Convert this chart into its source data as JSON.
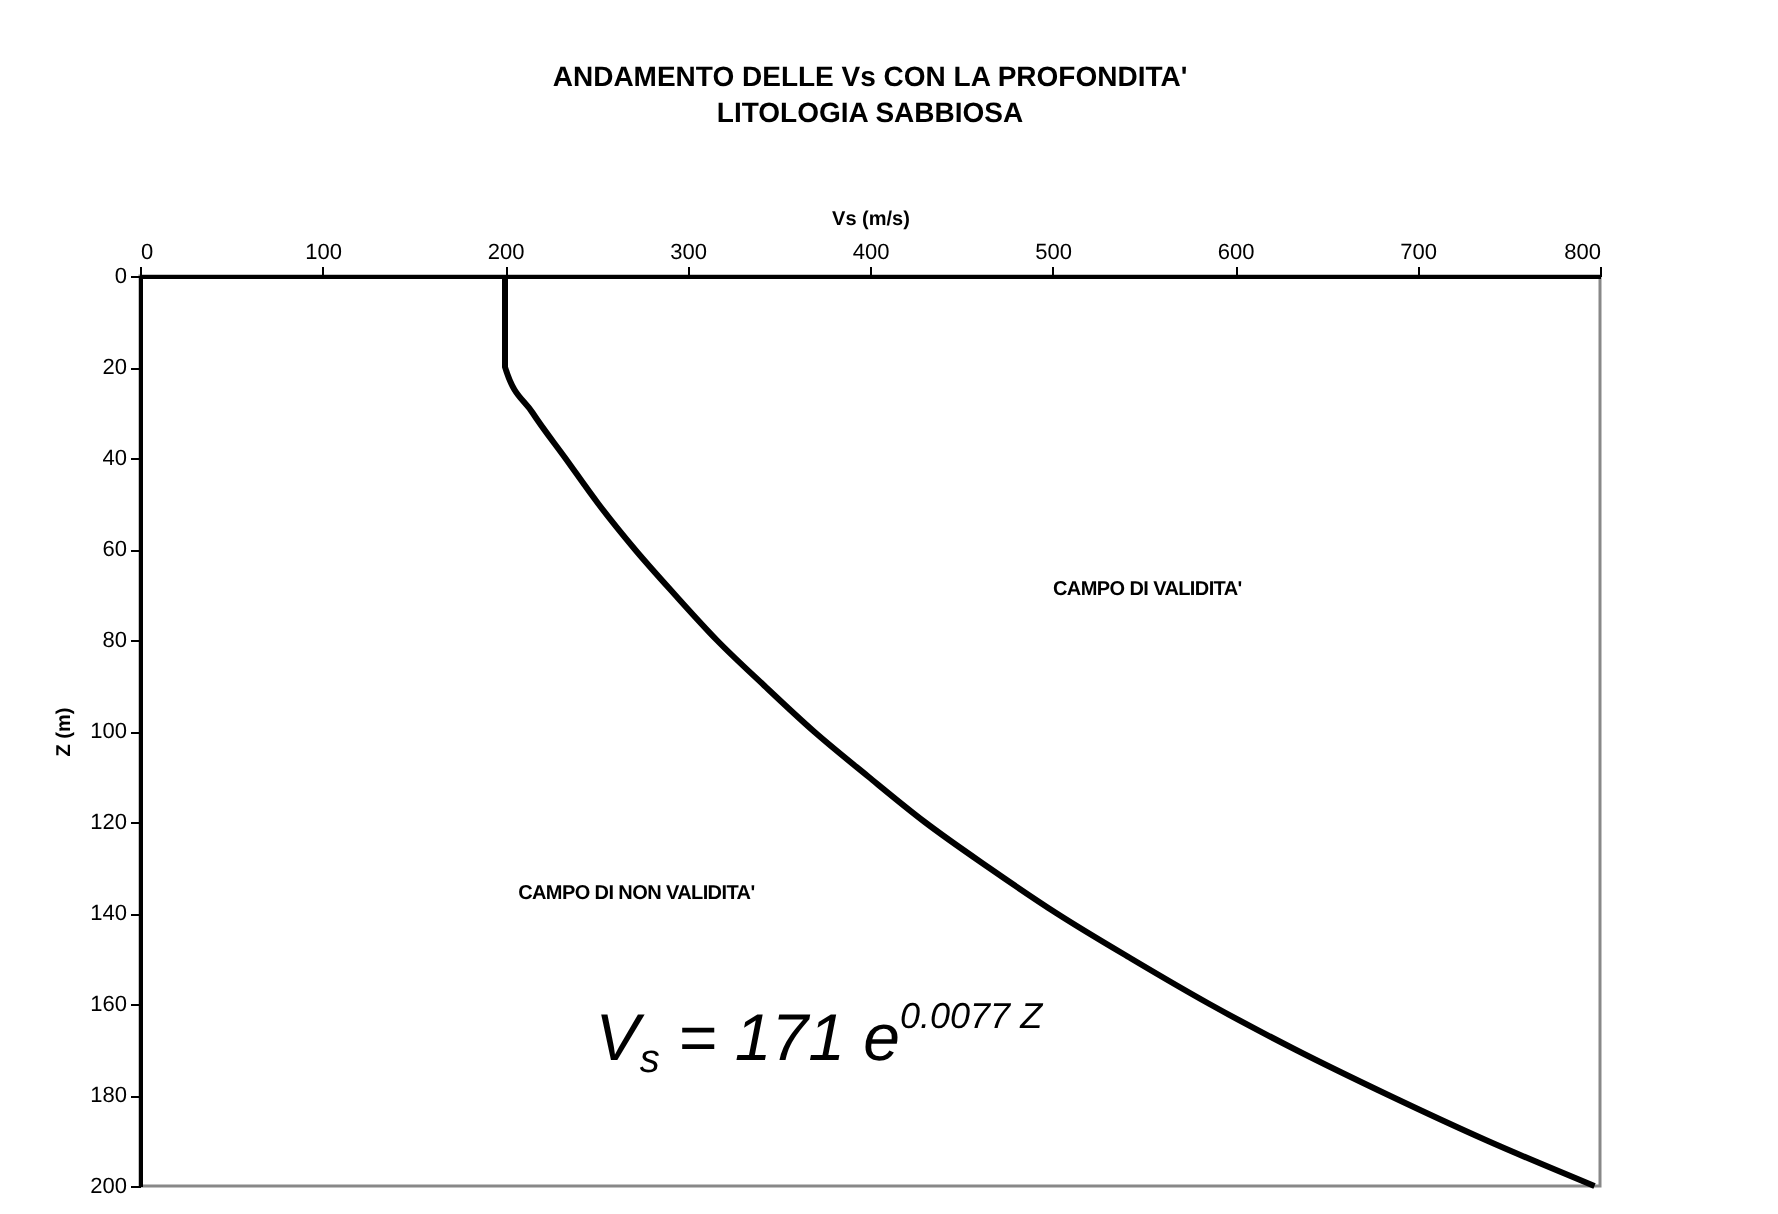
{
  "chart_data": {
    "type": "line",
    "title": "ANDAMENTO DELLE Vs CON LA PROFONDITA'",
    "subtitle": "LITOLOGIA SABBIOSA",
    "xlabel": "Vs (m/s)",
    "ylabel": "Z (m)",
    "x": [
      200,
      200,
      215,
      233,
      251,
      271,
      293,
      316,
      342,
      369,
      399,
      430,
      465,
      502,
      543,
      586,
      633,
      684,
      738,
      797
    ],
    "series": [
      {
        "color": "#000000",
        "values": [
          0,
          20,
          30,
          40,
          50,
          60,
          70,
          80,
          90,
          100,
          110,
          120,
          130,
          140,
          150,
          160,
          170,
          180,
          190,
          200
        ]
      }
    ],
    "xlim": [
      0,
      800
    ],
    "xticks": [
      0,
      100,
      200,
      300,
      400,
      500,
      600,
      700,
      800
    ],
    "ylim": [
      200,
      0
    ],
    "yticks": [
      0,
      20,
      40,
      60,
      80,
      100,
      120,
      140,
      160,
      180,
      200
    ],
    "grid": false,
    "marker": "none",
    "line_style": "solid",
    "annotations": [
      "CAMPO DI VALIDITA'",
      "CAMPO DI NON VALIDITA'",
      "V$_{s}$ = 171 e$^{0.0077 Z}$"
    ]
  }
}
